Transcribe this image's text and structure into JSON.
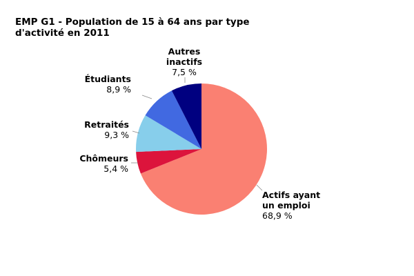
{
  "chart_data": {
    "type": "pie",
    "title_lines": [
      "EMP G1 - Population de 15 à 64 ans par type",
      "d'activité en 2011"
    ],
    "slices": [
      {
        "name_lines": [
          "Actifs ayant",
          "un emploi"
        ],
        "value": 68.9,
        "value_label": "68,9 %",
        "color": "#fa8072"
      },
      {
        "name_lines": [
          "Chômeurs"
        ],
        "value": 5.4,
        "value_label": "5,4 %",
        "color": "#dc143c"
      },
      {
        "name_lines": [
          "Retraités"
        ],
        "value": 9.3,
        "value_label": "9,3 %",
        "color": "#87ceeb"
      },
      {
        "name_lines": [
          "Étudiants"
        ],
        "value": 8.9,
        "value_label": "8,9 %",
        "color": "#4169e1"
      },
      {
        "name_lines": [
          "Autres",
          "inactifs"
        ],
        "value": 7.5,
        "value_label": "7,5 %",
        "color": "#000080"
      }
    ]
  }
}
